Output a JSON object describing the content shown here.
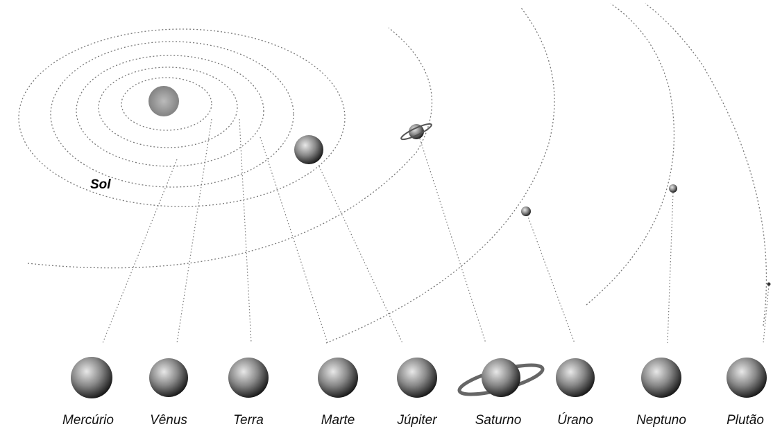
{
  "sun_label": "Sol",
  "planets": [
    {
      "label": "Mercúrio"
    },
    {
      "label": "Vênus"
    },
    {
      "label": "Terra"
    },
    {
      "label": "Marte"
    },
    {
      "label": "Júpiter"
    },
    {
      "label": "Saturno"
    },
    {
      "label": "Úrano"
    },
    {
      "label": "Neptuno"
    },
    {
      "label": "Plutão"
    }
  ]
}
